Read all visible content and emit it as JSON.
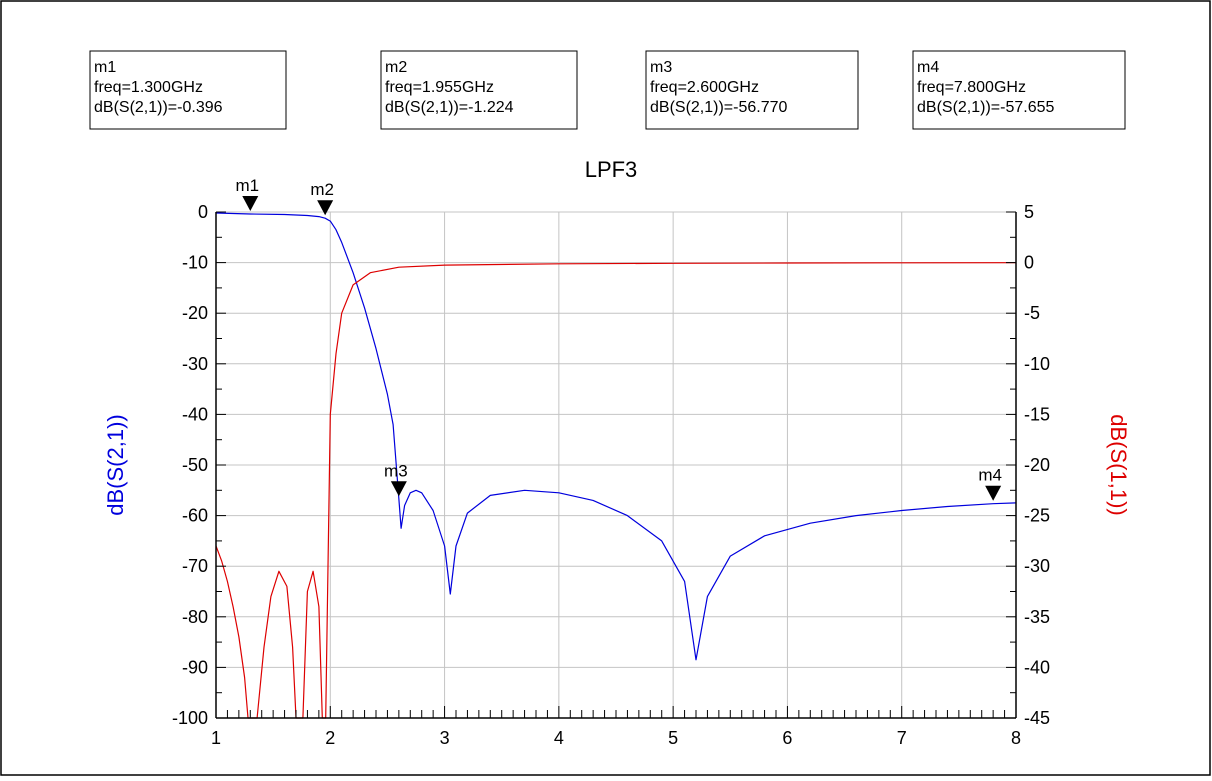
{
  "chart_data": {
    "type": "line",
    "title": "LPF3",
    "x": {
      "range": [
        1,
        8
      ],
      "major_ticks": [
        1,
        2,
        3,
        4,
        5,
        6,
        7,
        8
      ],
      "tick_labels": [
        "1",
        "2",
        "3",
        "4",
        "5",
        "6",
        "7",
        "8"
      ],
      "minor_ticks_per_major": 10
    },
    "y_left": {
      "label": "dB(S(2,1))",
      "color": "#0000dd",
      "range": [
        -100,
        0
      ],
      "ticks": [
        0,
        -10,
        -20,
        -30,
        -40,
        -50,
        -60,
        -70,
        -80,
        -90,
        -100
      ],
      "tick_labels": [
        "0",
        "-10",
        "-20",
        "-30",
        "-40",
        "-50",
        "-60",
        "-70",
        "-80",
        "-90",
        "-100"
      ]
    },
    "y_right": {
      "label": "dB(S(1,1))",
      "color": "#dd0000",
      "range": [
        -45,
        5
      ],
      "ticks": [
        5,
        0,
        -5,
        -10,
        -15,
        -20,
        -25,
        -30,
        -35,
        -40,
        -45
      ],
      "tick_labels": [
        "5",
        "0",
        "-5",
        "-10",
        "-15",
        "-20",
        "-25",
        "-30",
        "-35",
        "-40",
        "-45"
      ]
    },
    "grid": true,
    "series": [
      {
        "name": "dB(S(2,1))",
        "axis": "left",
        "color": "#0000dd",
        "points": [
          [
            1.0,
            -0.2
          ],
          [
            1.3,
            -0.396
          ],
          [
            1.6,
            -0.5
          ],
          [
            1.8,
            -0.7
          ],
          [
            1.9,
            -0.9
          ],
          [
            1.955,
            -1.224
          ],
          [
            2.0,
            -1.8
          ],
          [
            2.05,
            -3.5
          ],
          [
            2.1,
            -6.0
          ],
          [
            2.2,
            -12.0
          ],
          [
            2.3,
            -19.0
          ],
          [
            2.4,
            -27.0
          ],
          [
            2.5,
            -36.0
          ],
          [
            2.55,
            -42.0
          ],
          [
            2.6,
            -56.77
          ],
          [
            2.62,
            -62.5
          ],
          [
            2.65,
            -58.0
          ],
          [
            2.7,
            -55.5
          ],
          [
            2.75,
            -55.0
          ],
          [
            2.8,
            -55.5
          ],
          [
            2.9,
            -59.0
          ],
          [
            3.0,
            -66.0
          ],
          [
            3.05,
            -75.5
          ],
          [
            3.1,
            -66.0
          ],
          [
            3.2,
            -59.5
          ],
          [
            3.4,
            -56.0
          ],
          [
            3.7,
            -55.0
          ],
          [
            4.0,
            -55.5
          ],
          [
            4.3,
            -57.0
          ],
          [
            4.6,
            -60.0
          ],
          [
            4.9,
            -65.0
          ],
          [
            5.1,
            -73.0
          ],
          [
            5.2,
            -88.5
          ],
          [
            5.3,
            -76.0
          ],
          [
            5.5,
            -68.0
          ],
          [
            5.8,
            -64.0
          ],
          [
            6.2,
            -61.5
          ],
          [
            6.6,
            -60.0
          ],
          [
            7.0,
            -59.0
          ],
          [
            7.4,
            -58.2
          ],
          [
            7.8,
            -57.655
          ],
          [
            8.0,
            -57.5
          ]
        ]
      },
      {
        "name": "dB(S(1,1))",
        "axis": "right",
        "color": "#dd0000",
        "points": [
          [
            1.0,
            -28.0
          ],
          [
            1.05,
            -29.5
          ],
          [
            1.1,
            -31.5
          ],
          [
            1.15,
            -34.0
          ],
          [
            1.2,
            -37.0
          ],
          [
            1.25,
            -41.0
          ],
          [
            1.28,
            -45.0
          ],
          [
            1.36,
            -45.0
          ],
          [
            1.42,
            -38.0
          ],
          [
            1.48,
            -33.0
          ],
          [
            1.55,
            -30.5
          ],
          [
            1.62,
            -32.0
          ],
          [
            1.67,
            -38.0
          ],
          [
            1.7,
            -45.0
          ],
          [
            1.76,
            -45.0
          ],
          [
            1.8,
            -32.5
          ],
          [
            1.85,
            -30.5
          ],
          [
            1.9,
            -34.0
          ],
          [
            1.93,
            -45.0
          ],
          [
            1.96,
            -45.0
          ],
          [
            1.98,
            -30.0
          ],
          [
            2.0,
            -15.0
          ],
          [
            2.05,
            -9.0
          ],
          [
            2.1,
            -5.0
          ],
          [
            2.2,
            -2.2
          ],
          [
            2.35,
            -1.0
          ],
          [
            2.6,
            -0.45
          ],
          [
            3.0,
            -0.25
          ],
          [
            4.0,
            -0.12
          ],
          [
            5.0,
            -0.07
          ],
          [
            6.0,
            -0.04
          ],
          [
            7.0,
            -0.02
          ],
          [
            8.0,
            -0.01
          ]
        ]
      }
    ],
    "markers": [
      {
        "name": "m1",
        "freq": 1.3,
        "value": -0.396,
        "freq_text": "freq=1.300GHz",
        "value_text": "dB(S(2,1))=-0.396"
      },
      {
        "name": "m2",
        "freq": 1.955,
        "value": -1.224,
        "freq_text": "freq=1.955GHz",
        "value_text": "dB(S(2,1))=-1.224"
      },
      {
        "name": "m3",
        "freq": 2.6,
        "value": -56.77,
        "freq_text": "freq=2.600GHz",
        "value_text": "dB(S(2,1))=-56.770"
      },
      {
        "name": "m4",
        "freq": 7.8,
        "value": -57.655,
        "freq_text": "freq=7.800GHz",
        "value_text": "dB(S(2,1))=-57.655"
      }
    ]
  }
}
